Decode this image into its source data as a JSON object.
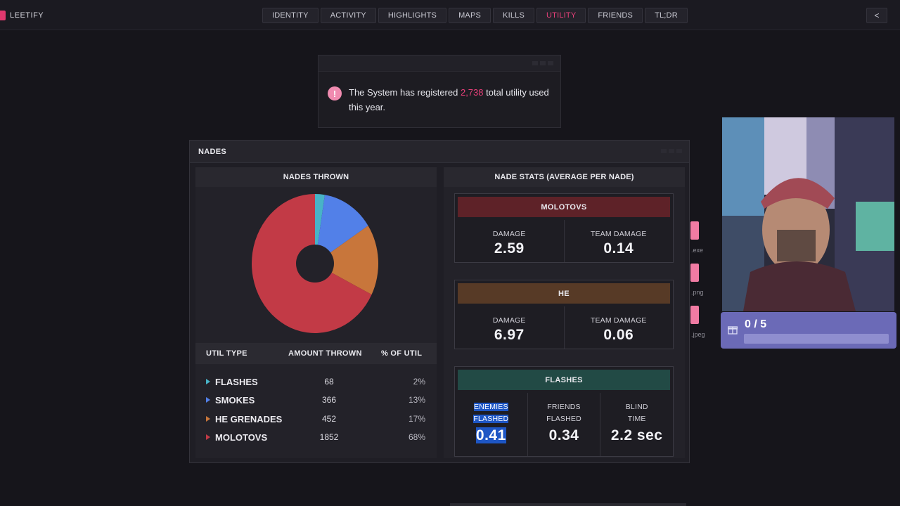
{
  "header": {
    "brand": "LEETIFY",
    "tabs": [
      {
        "label": "IDENTITY",
        "active": false
      },
      {
        "label": "ACTIVITY",
        "active": false
      },
      {
        "label": "HIGHLIGHTS",
        "active": false
      },
      {
        "label": "MAPS",
        "active": false
      },
      {
        "label": "KILLS",
        "active": false
      },
      {
        "label": "UTILITY",
        "active": true
      },
      {
        "label": "FRIENDS",
        "active": false
      },
      {
        "label": "TL;DR",
        "active": false
      }
    ],
    "share_icon": "share-icon"
  },
  "info": {
    "prefix": "The System has registered ",
    "count": "2,738",
    "suffix": " total utility used this year."
  },
  "nades": {
    "title": "NADES",
    "thrown_title": "NADES THROWN",
    "stats_title": "NADE STATS (AVERAGE PER NADE)",
    "table_headers": [
      "UTIL TYPE",
      "AMOUNT THROWN",
      "% OF UTIL"
    ],
    "rows": [
      {
        "name": "FLASHES",
        "amount": "68",
        "pct": "2%",
        "color": "#48b3c7"
      },
      {
        "name": "SMOKES",
        "amount": "366",
        "pct": "13%",
        "color": "#5280e8"
      },
      {
        "name": "HE GRENADES",
        "amount": "452",
        "pct": "17%",
        "color": "#c8763b"
      },
      {
        "name": "MOLOTOVS",
        "amount": "1852",
        "pct": "68%",
        "color": "#c23a46"
      }
    ],
    "cards": {
      "molotovs": {
        "title": "MOLOTOVS",
        "color": "#5e2228",
        "damage_label": "DAMAGE",
        "damage": "2.59",
        "team_label": "TEAM DAMAGE",
        "team": "0.14"
      },
      "he": {
        "title": "HE",
        "color": "#573a26",
        "damage_label": "DAMAGE",
        "damage": "6.97",
        "team_label": "TEAM DAMAGE",
        "team": "0.06"
      },
      "flashes": {
        "title": "FLASHES",
        "color": "#224a45",
        "enemies_label1": "ENEMIES",
        "enemies_label2": "FLASHED",
        "enemies": "0.41",
        "friends_label1": "FRIENDS",
        "friends_label2": "FLASHED",
        "friends": "0.34",
        "blind_label1": "BLIND",
        "blind_label2": "TIME",
        "blind": "2.2 sec"
      }
    }
  },
  "chart_data": {
    "type": "pie",
    "categories": [
      "FLASHES",
      "SMOKES",
      "HE GRENADES",
      "MOLOTOVS"
    ],
    "values": [
      68,
      366,
      452,
      1852
    ],
    "colors": [
      "#48b3c7",
      "#5280e8",
      "#c8763b",
      "#c23a46"
    ],
    "donut": true,
    "title": "NADES THROWN"
  },
  "side_files": [
    ".exe",
    ".png",
    ".jpeg"
  ],
  "stream_widget": {
    "progress_text": "0 / 5",
    "progress": 0
  }
}
